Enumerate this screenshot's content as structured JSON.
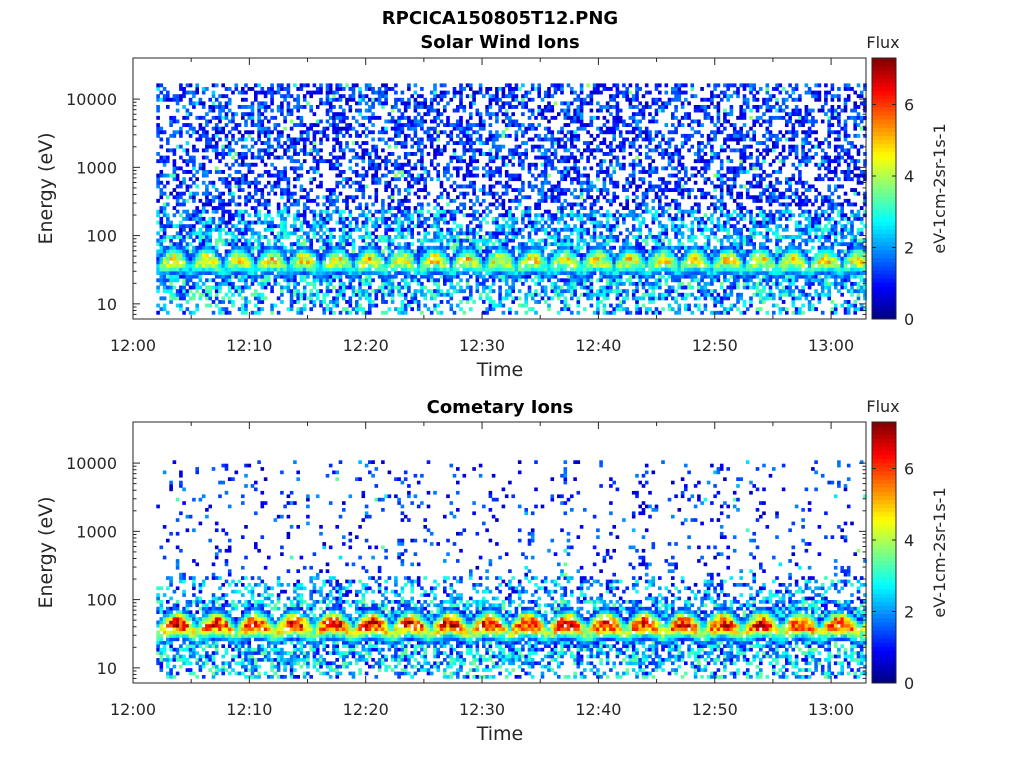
{
  "figure": {
    "title": "RPCICA150805T12.PNG"
  },
  "chart_data": [
    {
      "type": "heatmap",
      "title": "Solar Wind Ions",
      "xlabel": "Time",
      "ylabel": "Energy (eV)",
      "x_tick_labels": [
        "12:00",
        "12:10",
        "12:20",
        "12:30",
        "12:40",
        "12:50",
        "13:00"
      ],
      "y_tick_labels": [
        "10",
        "100",
        "1000",
        "10000"
      ],
      "y_scale": "log",
      "xlim": [
        "12:00",
        "13:03"
      ],
      "ylim": [
        6,
        40000
      ],
      "data_start": "12:02",
      "colorbar": {
        "title": "Flux",
        "label": "eV-1cm-2sr-1s-1",
        "tick_labels": [
          "0",
          "2",
          "4",
          "6"
        ],
        "range": [
          0,
          7.3
        ],
        "colormap": "jet"
      },
      "pattern": {
        "band_center_eV": 35,
        "band_peak": 5.0,
        "sweep_period_min": 2.8,
        "background_density_high_energy": 0.45,
        "max_energy_eV": 17000
      }
    },
    {
      "type": "heatmap",
      "title": "Cometary Ions",
      "xlabel": "Time",
      "ylabel": "Energy (eV)",
      "x_tick_labels": [
        "12:00",
        "12:10",
        "12:20",
        "12:30",
        "12:40",
        "12:50",
        "13:00"
      ],
      "y_tick_labels": [
        "10",
        "100",
        "1000",
        "10000"
      ],
      "y_scale": "log",
      "xlim": [
        "12:00",
        "13:03"
      ],
      "ylim": [
        6,
        40000
      ],
      "data_start": "12:02",
      "colorbar": {
        "title": "Flux",
        "label": "eV-1cm-2sr-1s-1",
        "tick_labels": [
          "0",
          "2",
          "4",
          "6"
        ],
        "range": [
          0,
          7.3
        ],
        "colormap": "jet"
      },
      "pattern": {
        "band_center_eV": 35,
        "band_peak": 6.8,
        "sweep_period_min": 3.35,
        "background_density_high_energy": 0.07,
        "max_energy_eV": 11000
      }
    }
  ]
}
